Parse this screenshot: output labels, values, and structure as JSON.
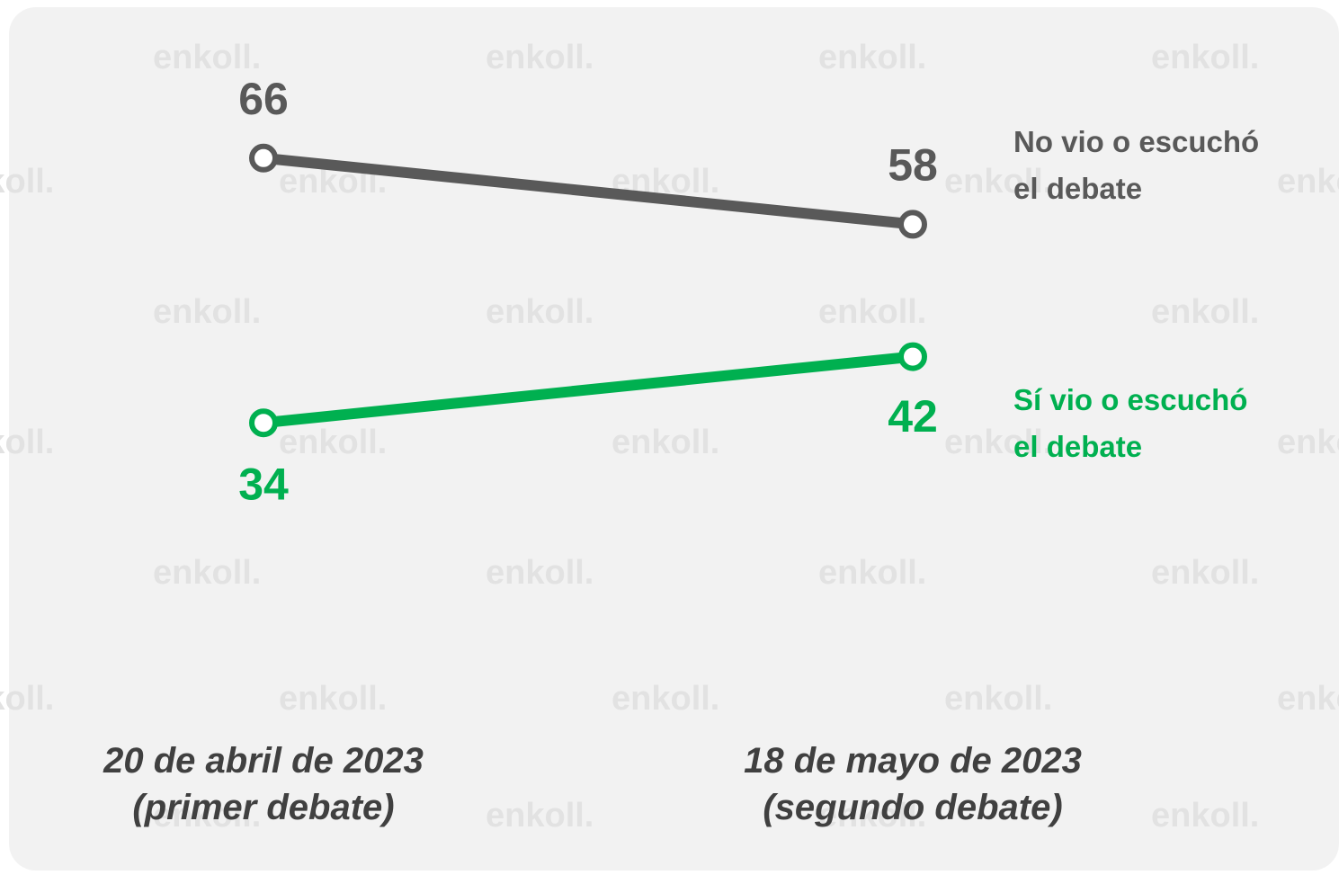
{
  "chart_data": {
    "type": "line",
    "categories": [
      "20 de abril de 2023\n(primer debate)",
      "18 de mayo de 2023\n(segundo debate)"
    ],
    "series": [
      {
        "name": "No vio o escuchó\nel debate",
        "color": "#595959",
        "values": [
          66,
          58
        ]
      },
      {
        "name": "Sí vio o escuchó\nel debate",
        "color": "#00b050",
        "values": [
          34,
          42
        ]
      }
    ],
    "watermark": "enkoll."
  }
}
